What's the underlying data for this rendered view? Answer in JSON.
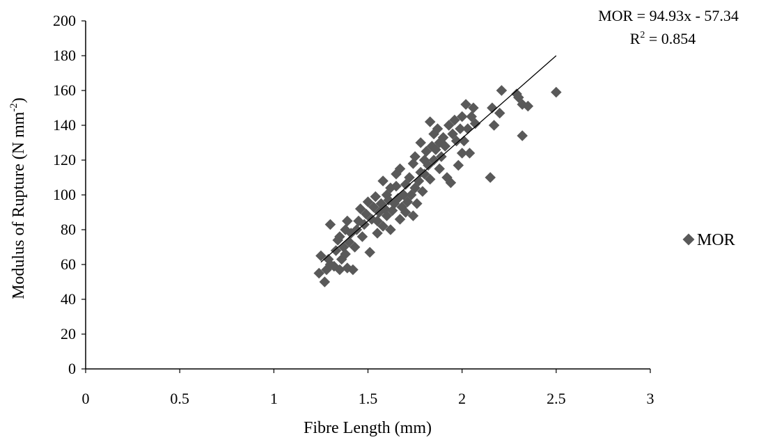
{
  "chart_data": {
    "type": "scatter",
    "title": "",
    "xlabel": "Fibre Length (mm)",
    "ylabel_main": "Modulus of Rupture (N mm",
    "ylabel_sup": "-2",
    "ylabel_close": ")",
    "xlim": [
      0,
      3
    ],
    "ylim": [
      0,
      200
    ],
    "x_ticks": [
      "0",
      "0.5",
      "1",
      "1.5",
      "2",
      "2.5",
      "3"
    ],
    "y_ticks": [
      "0",
      "20",
      "40",
      "60",
      "80",
      "100",
      "120",
      "140",
      "160",
      "180",
      "200"
    ],
    "grid": false,
    "legend": {
      "position": "right",
      "entries": [
        "MOR"
      ]
    },
    "marker_color": "#595959",
    "trendline": {
      "type": "linear",
      "slope": 94.93,
      "intercept": -57.34,
      "x_range": [
        1.25,
        2.5
      ],
      "color": "#000000",
      "equation_label": "MOR = 94.93x - 57.34",
      "r2_prefix": "R",
      "r2_sup": "2",
      "r2_value": " = 0.854"
    },
    "series": [
      {
        "name": "MOR",
        "points": [
          [
            1.24,
            55
          ],
          [
            1.25,
            65
          ],
          [
            1.27,
            50
          ],
          [
            1.28,
            57
          ],
          [
            1.29,
            63
          ],
          [
            1.3,
            60
          ],
          [
            1.3,
            83
          ],
          [
            1.32,
            59
          ],
          [
            1.33,
            68
          ],
          [
            1.34,
            74
          ],
          [
            1.35,
            57
          ],
          [
            1.35,
            76
          ],
          [
            1.36,
            63
          ],
          [
            1.37,
            70
          ],
          [
            1.38,
            66
          ],
          [
            1.38,
            80
          ],
          [
            1.39,
            58
          ],
          [
            1.39,
            85
          ],
          [
            1.4,
            73
          ],
          [
            1.41,
            78
          ],
          [
            1.42,
            57
          ],
          [
            1.43,
            70
          ],
          [
            1.44,
            80
          ],
          [
            1.45,
            85
          ],
          [
            1.46,
            92
          ],
          [
            1.47,
            76
          ],
          [
            1.48,
            83
          ],
          [
            1.49,
            89
          ],
          [
            1.5,
            96
          ],
          [
            1.51,
            67
          ],
          [
            1.52,
            86
          ],
          [
            1.53,
            93
          ],
          [
            1.54,
            99
          ],
          [
            1.55,
            78
          ],
          [
            1.55,
            85
          ],
          [
            1.56,
            90
          ],
          [
            1.57,
            95
          ],
          [
            1.58,
            108
          ],
          [
            1.58,
            82
          ],
          [
            1.59,
            92
          ],
          [
            1.6,
            88
          ],
          [
            1.6,
            100
          ],
          [
            1.61,
            97
          ],
          [
            1.62,
            104
          ],
          [
            1.62,
            80
          ],
          [
            1.63,
            91
          ],
          [
            1.64,
            95
          ],
          [
            1.65,
            105
          ],
          [
            1.65,
            112
          ],
          [
            1.66,
            98
          ],
          [
            1.67,
            86
          ],
          [
            1.67,
            115
          ],
          [
            1.68,
            93
          ],
          [
            1.69,
            100
          ],
          [
            1.7,
            106
          ],
          [
            1.7,
            90
          ],
          [
            1.71,
            96
          ],
          [
            1.72,
            110
          ],
          [
            1.73,
            100
          ],
          [
            1.74,
            88
          ],
          [
            1.74,
            118
          ],
          [
            1.75,
            104
          ],
          [
            1.75,
            122
          ],
          [
            1.76,
            95
          ],
          [
            1.77,
            108
          ],
          [
            1.78,
            113
          ],
          [
            1.78,
            130
          ],
          [
            1.79,
            102
          ],
          [
            1.8,
            120
          ],
          [
            1.8,
            112
          ],
          [
            1.81,
            125
          ],
          [
            1.82,
            117
          ],
          [
            1.83,
            109
          ],
          [
            1.83,
            142
          ],
          [
            1.84,
            128
          ],
          [
            1.85,
            120
          ],
          [
            1.85,
            135
          ],
          [
            1.86,
            126
          ],
          [
            1.87,
            138
          ],
          [
            1.88,
            115
          ],
          [
            1.88,
            130
          ],
          [
            1.89,
            122
          ],
          [
            1.9,
            133
          ],
          [
            1.91,
            128
          ],
          [
            1.92,
            110
          ],
          [
            1.93,
            140
          ],
          [
            1.94,
            107
          ],
          [
            1.95,
            135
          ],
          [
            1.96,
            143
          ],
          [
            1.97,
            131
          ],
          [
            1.98,
            117
          ],
          [
            1.99,
            138
          ],
          [
            2.0,
            124
          ],
          [
            2.0,
            145
          ],
          [
            2.01,
            131
          ],
          [
            2.02,
            152
          ],
          [
            2.03,
            138
          ],
          [
            2.04,
            124
          ],
          [
            2.05,
            145
          ],
          [
            2.06,
            150
          ],
          [
            2.07,
            141
          ],
          [
            2.15,
            110
          ],
          [
            2.16,
            150
          ],
          [
            2.17,
            140
          ],
          [
            2.2,
            147
          ],
          [
            2.21,
            160
          ],
          [
            2.29,
            158
          ],
          [
            2.3,
            156
          ],
          [
            2.32,
            152
          ],
          [
            2.32,
            134
          ],
          [
            2.35,
            151
          ],
          [
            2.5,
            159
          ]
        ]
      }
    ]
  }
}
